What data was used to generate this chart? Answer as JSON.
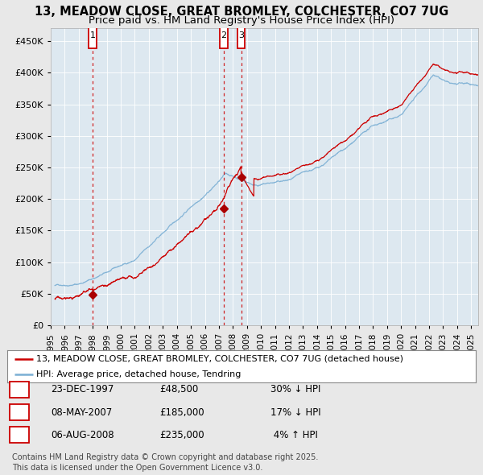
{
  "title": "13, MEADOW CLOSE, GREAT BROMLEY, COLCHESTER, CO7 7UG",
  "subtitle": "Price paid vs. HM Land Registry's House Price Index (HPI)",
  "ytick_values": [
    0,
    50000,
    100000,
    150000,
    200000,
    250000,
    300000,
    350000,
    400000,
    450000
  ],
  "ylim": [
    0,
    470000
  ],
  "xlim_start": 1995.3,
  "xlim_end": 2025.5,
  "sale_dates": [
    1997.98,
    2007.35,
    2008.59
  ],
  "sale_prices": [
    48500,
    185000,
    235000
  ],
  "sale_labels": [
    "1",
    "2",
    "3"
  ],
  "vline_color": "#cc0000",
  "sale_marker_color": "#aa0000",
  "hpi_line_color": "#7bafd4",
  "price_line_color": "#cc0000",
  "background_color": "#e8e8e8",
  "plot_bg_color": "#dde8f0",
  "legend_label_red": "13, MEADOW CLOSE, GREAT BROMLEY, COLCHESTER, CO7 7UG (detached house)",
  "legend_label_blue": "HPI: Average price, detached house, Tendring",
  "table_rows": [
    {
      "num": "1",
      "date": "23-DEC-1997",
      "price": "£48,500",
      "rel": "30% ↓ HPI"
    },
    {
      "num": "2",
      "date": "08-MAY-2007",
      "price": "£185,000",
      "rel": "17% ↓ HPI"
    },
    {
      "num": "3",
      "date": "06-AUG-2008",
      "price": "£235,000",
      "rel": " 4% ↑ HPI"
    }
  ],
  "footnote": "Contains HM Land Registry data © Crown copyright and database right 2025.\nThis data is licensed under the Open Government Licence v3.0.",
  "title_fontsize": 10.5,
  "subtitle_fontsize": 9.5,
  "tick_fontsize": 8,
  "legend_fontsize": 8,
  "table_fontsize": 8.5,
  "footnote_fontsize": 7
}
